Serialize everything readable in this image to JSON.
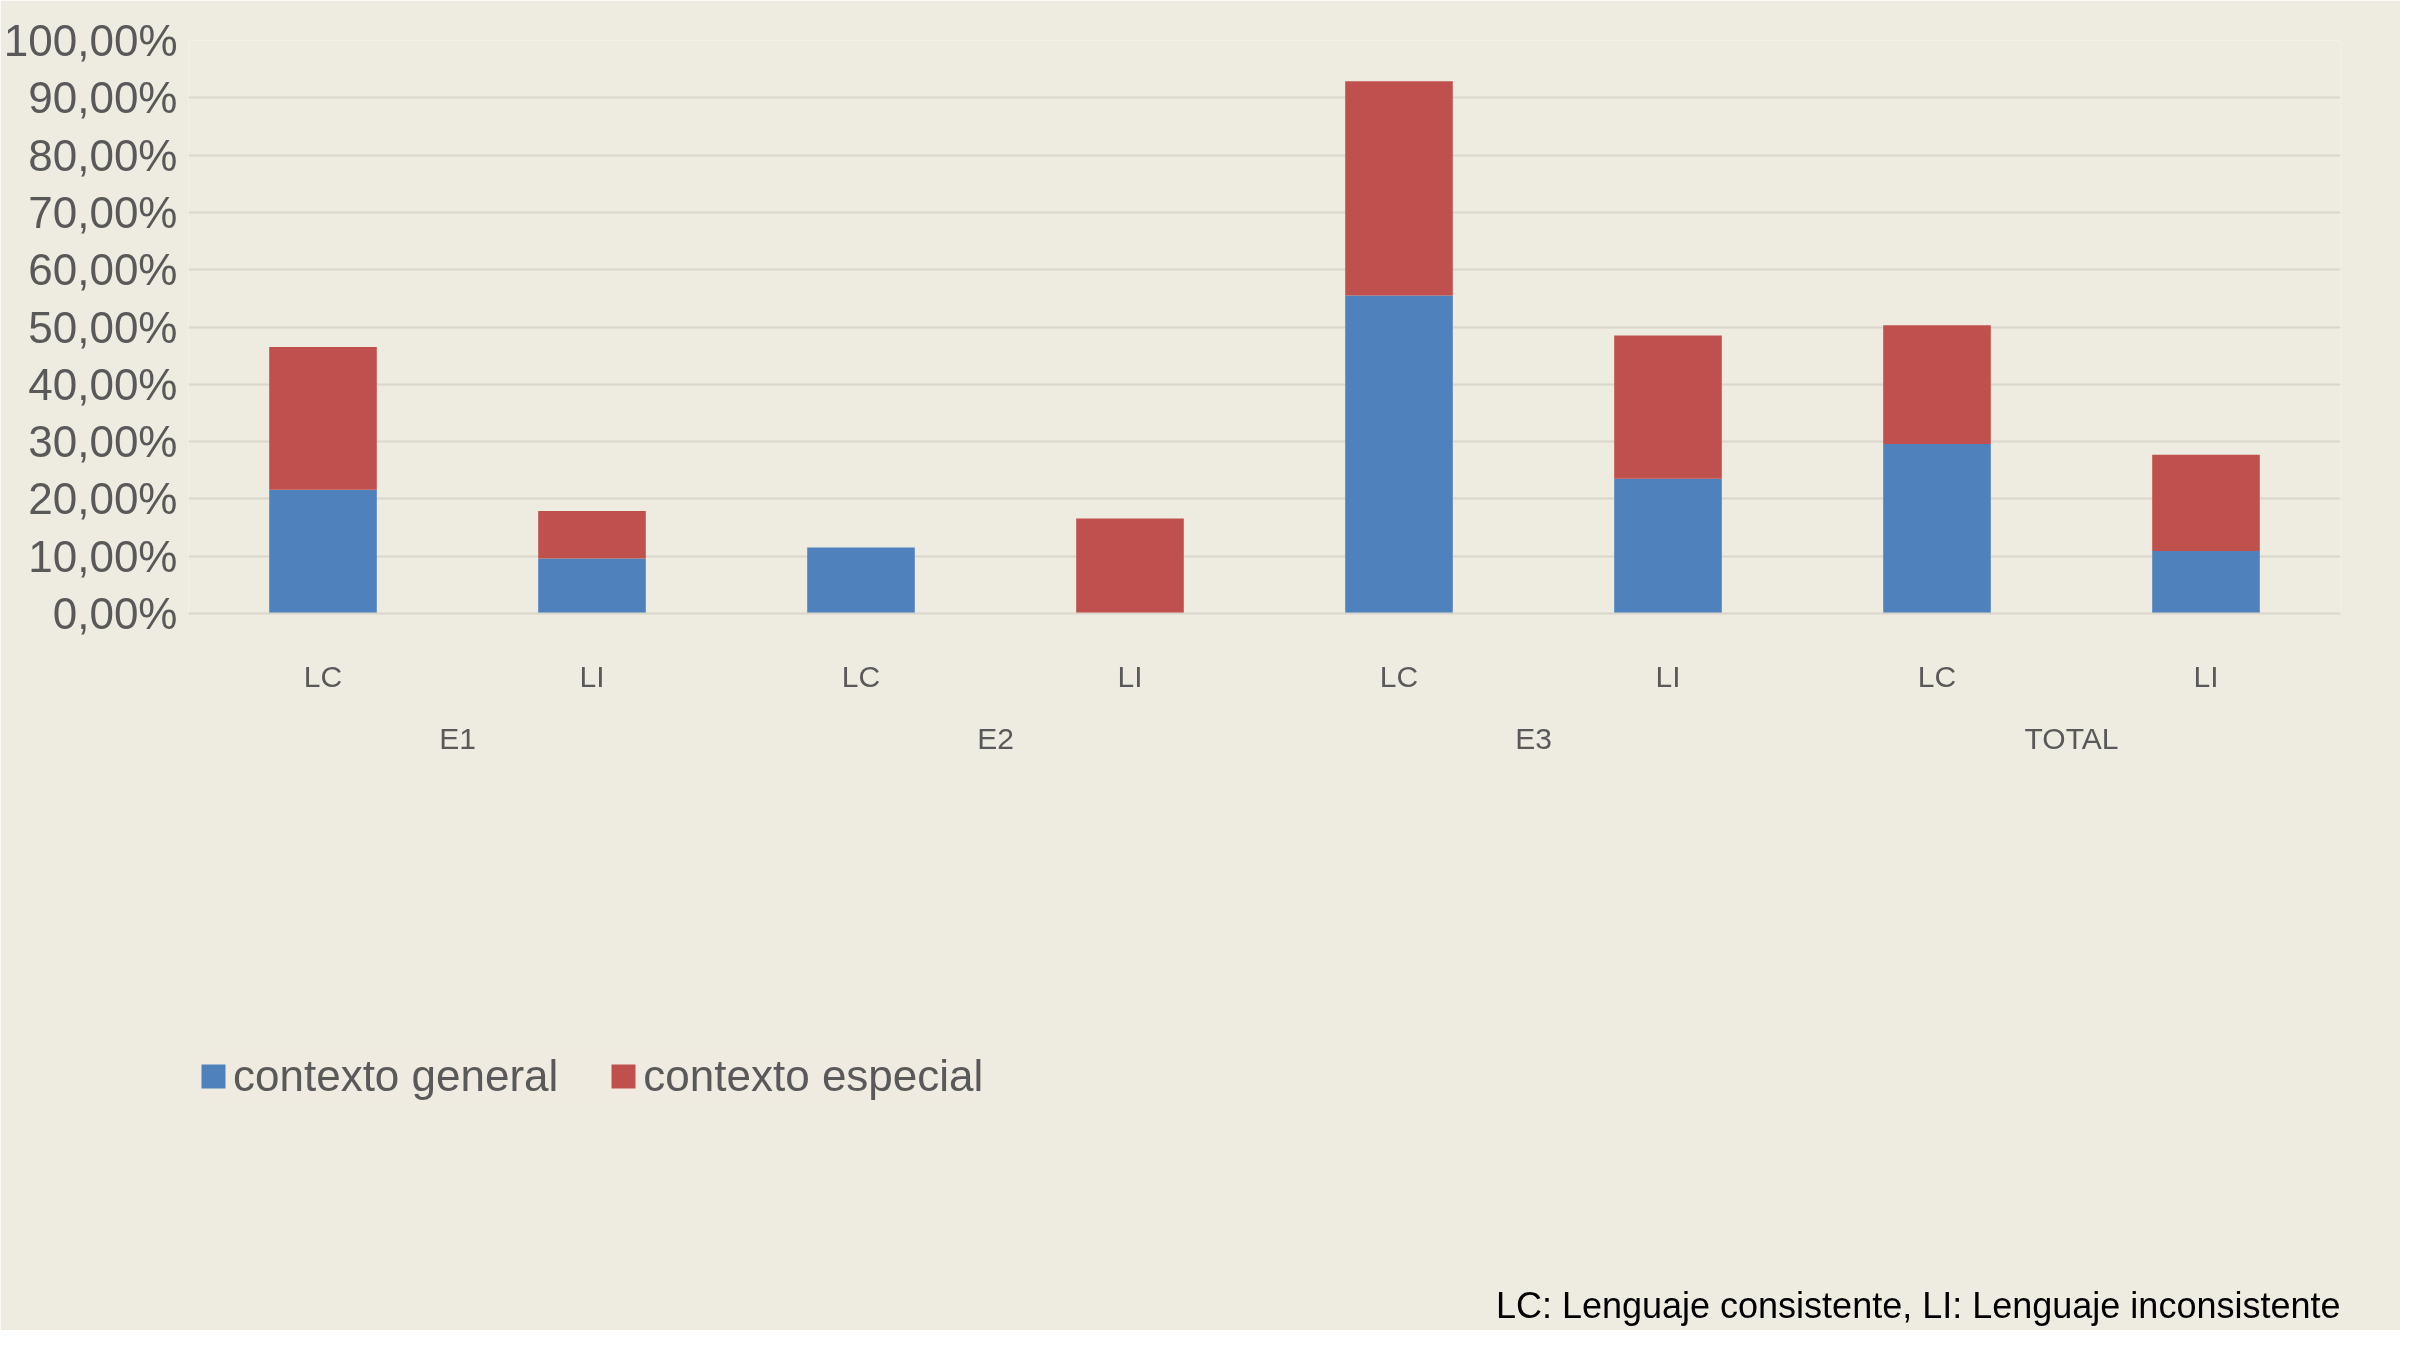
{
  "chart_data": {
    "type": "bar",
    "stacked": true,
    "categories": [
      "LC",
      "LI",
      "LC",
      "LI",
      "LC",
      "LI",
      "LC",
      "LI"
    ],
    "series": [
      {
        "name": "contexto general",
        "color": "#4f81bd",
        "values": [
          21.6,
          9.6,
          11.5,
          0,
          55.5,
          23.5,
          29.6,
          10.9
        ]
      },
      {
        "name": "contexto especial",
        "color": "#c0504d",
        "values": [
          24.9,
          8.3,
          0,
          16.6,
          37.4,
          25.0,
          20.7,
          16.8
        ]
      }
    ],
    "ylim": [
      0,
      100
    ],
    "yticks": [
      {
        "value": 0,
        "label": "0,00%"
      },
      {
        "value": 10,
        "label": "10,00%"
      },
      {
        "value": 20,
        "label": "20,00%"
      },
      {
        "value": 30,
        "label": "30,00%"
      },
      {
        "value": 40,
        "label": "40,00%"
      },
      {
        "value": 50,
        "label": "50,00%"
      },
      {
        "value": 60,
        "label": "60,00%"
      },
      {
        "value": 70,
        "label": "70,00%"
      },
      {
        "value": 80,
        "label": "80,00%"
      },
      {
        "value": 90,
        "label": "90,00%"
      },
      {
        "value": 100,
        "label": "100,00%"
      }
    ],
    "grid": "y",
    "legend": "bottom left",
    "annotations": [
      "E1",
      "E2",
      "E3",
      "TOTAL",
      "LC: Lenguaje consistente, LI: Lenguaje inconsistente"
    ]
  }
}
